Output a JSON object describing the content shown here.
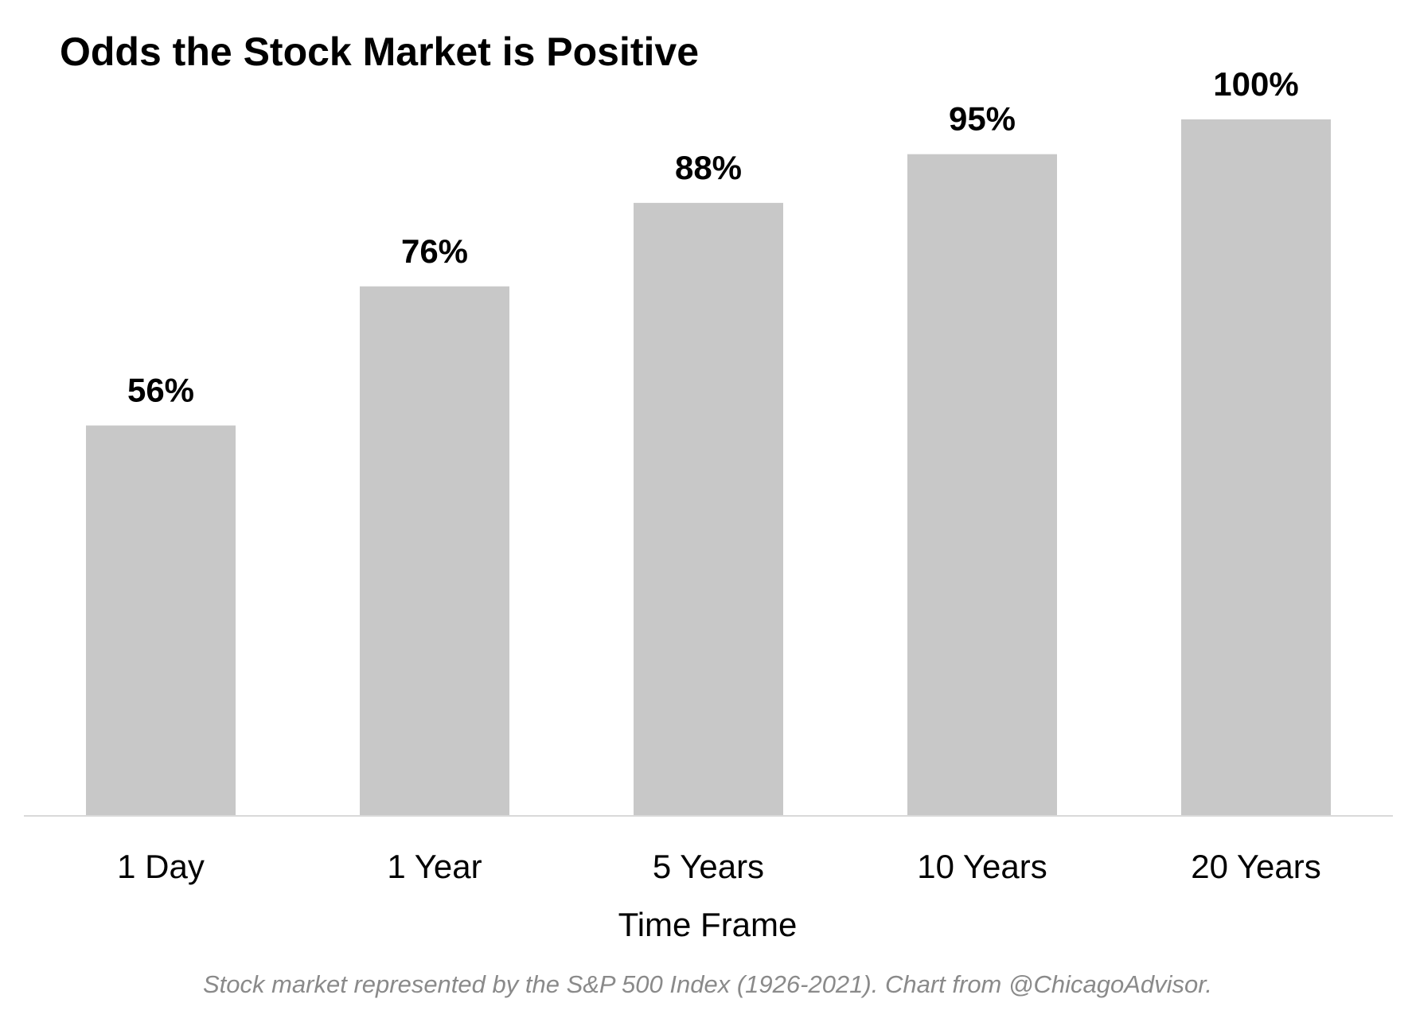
{
  "chart_data": {
    "type": "bar",
    "title": "Odds the Stock Market is Positive",
    "xlabel": "Time Frame",
    "ylabel": "",
    "categories": [
      "1 Day",
      "1 Year",
      "5 Years",
      "10 Years",
      "20 Years"
    ],
    "values": [
      56,
      76,
      88,
      95,
      100
    ],
    "value_labels": [
      "56%",
      "76%",
      "88%",
      "95%",
      "100%"
    ],
    "ylim": [
      0,
      100
    ],
    "grid": false,
    "legend": "none",
    "footnote": "Stock market represented by the S&P 500 Index (1926-2021). Chart from @ChicagoAdvisor.",
    "colors": {
      "bar": "#c8c8c8",
      "axis": "#d9d9d9",
      "text": "#000000",
      "footnote": "#8a8a8a"
    }
  }
}
